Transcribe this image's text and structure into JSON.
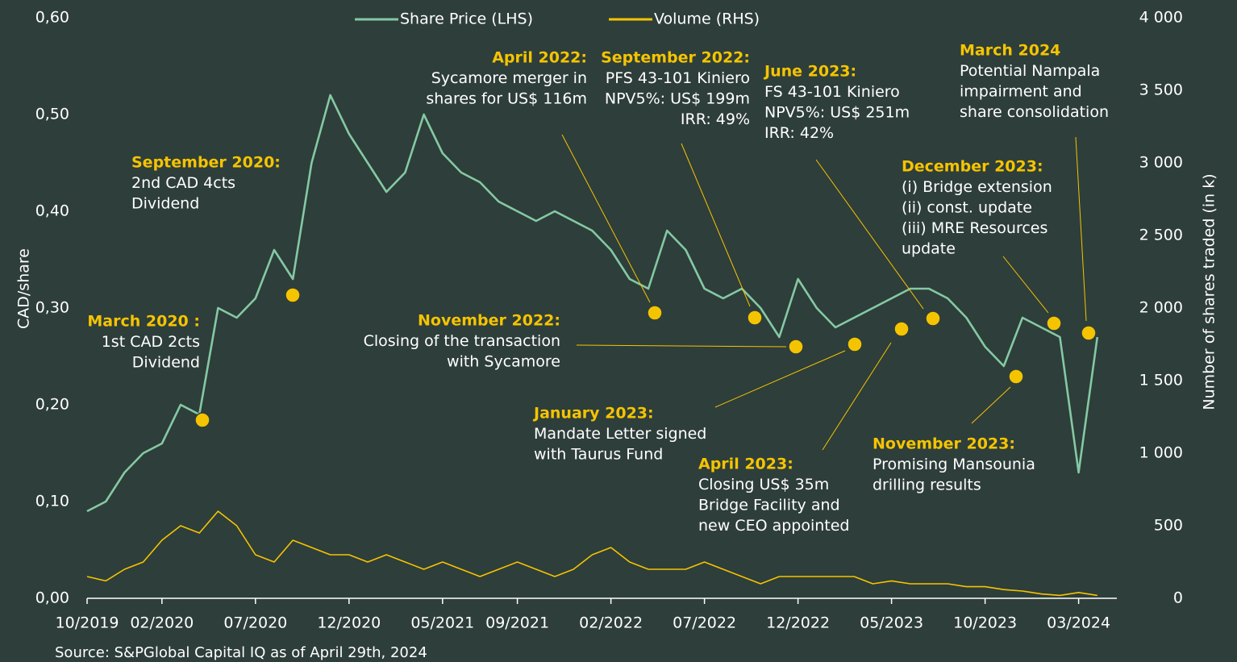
{
  "chart_data": {
    "type": "line",
    "series": [
      {
        "name": "Share Price (LHS)",
        "color": "#84c9a4",
        "axis": "y",
        "values": [
          0.09,
          0.1,
          0.13,
          0.15,
          0.16,
          0.2,
          0.19,
          0.3,
          0.29,
          0.31,
          0.36,
          0.33,
          0.45,
          0.52,
          0.48,
          0.45,
          0.42,
          0.44,
          0.5,
          0.46,
          0.44,
          0.43,
          0.41,
          0.4,
          0.39,
          0.4,
          0.39,
          0.38,
          0.36,
          0.33,
          0.32,
          0.38,
          0.36,
          0.32,
          0.31,
          0.32,
          0.3,
          0.27,
          0.33,
          0.3,
          0.28,
          0.29,
          0.3,
          0.31,
          0.32,
          0.32,
          0.31,
          0.29,
          0.26,
          0.24,
          0.29,
          0.28,
          0.27,
          0.13,
          0.27
        ]
      },
      {
        "name": "Volume (RHS)",
        "color": "#f5c400",
        "axis": "y2",
        "values": [
          150,
          120,
          200,
          250,
          400,
          500,
          450,
          600,
          500,
          300,
          250,
          400,
          350,
          300,
          300,
          250,
          300,
          250,
          200,
          250,
          200,
          150,
          200,
          250,
          200,
          150,
          200,
          300,
          350,
          250,
          200,
          200,
          200,
          250,
          200,
          150,
          100,
          150,
          150,
          150,
          150,
          150,
          100,
          120,
          100,
          100,
          100,
          80,
          80,
          60,
          50,
          30,
          20,
          40,
          20
        ]
      }
    ],
    "categories": [
      "10/2019",
      null,
      null,
      null,
      "02/2020",
      null,
      null,
      null,
      null,
      "07/2020",
      null,
      null,
      null,
      null,
      "12/2020",
      null,
      null,
      null,
      null,
      "05/2021",
      null,
      null,
      null,
      "09/2021",
      null,
      null,
      null,
      null,
      "02/2022",
      null,
      null,
      null,
      null,
      "07/2022",
      null,
      null,
      null,
      null,
      "12/2022",
      null,
      null,
      null,
      null,
      "05/2023",
      null,
      null,
      null,
      null,
      "10/2023",
      null,
      null,
      null,
      null,
      "03/2024",
      null
    ],
    "ylabel": "CAD/share",
    "y2label": "Number of shares traded (in k)",
    "ylim": [
      0,
      0.6
    ],
    "yticks": [
      {
        "value": 0,
        "label": "0,00"
      },
      {
        "value": 0.1,
        "label": "0,10"
      },
      {
        "value": 0.2,
        "label": "0,20"
      },
      {
        "value": 0.3,
        "label": "0,30"
      },
      {
        "value": 0.4,
        "label": "0,40"
      },
      {
        "value": 0.5,
        "label": "0,50"
      },
      {
        "value": 0.6,
        "label": "0,60"
      }
    ],
    "y2lim": [
      0,
      4000
    ],
    "y2ticks": [
      0,
      500,
      {
        "value": 1000,
        "label": "1 000"
      },
      {
        "value": 1500,
        "label": "1 500"
      },
      {
        "value": 2000,
        "label": "2 000"
      },
      {
        "value": 2500,
        "label": "2 500"
      },
      {
        "value": 3000,
        "label": "3 000"
      },
      {
        "value": 3500,
        "label": "3 500"
      },
      {
        "value": 4000,
        "label": "4 000"
      }
    ],
    "legend": "top",
    "source": "Source: S&PGlobal Capital IQ as of April 29th, 2024",
    "annotations": [
      {
        "title": "March 2020 :",
        "lines": [
          "1st CAD 2cts",
          "Dividend"
        ]
      },
      {
        "title": "September 2020:",
        "lines": [
          "2nd CAD 4cts",
          "Dividend"
        ]
      },
      {
        "title": "April 2022:",
        "lines": [
          "Sycamore merger in",
          "shares for US$ 116m"
        ]
      },
      {
        "title": "September 2022:",
        "lines": [
          "PFS 43-101 Kiniero",
          "NPV5%: US$ 199m",
          "IRR: 49%"
        ]
      },
      {
        "title": "June 2023:",
        "lines": [
          "FS 43-101 Kiniero",
          "NPV5%: US$ 251m",
          "IRR: 42%"
        ]
      },
      {
        "title": "March 2024",
        "lines": [
          "Potential Nampala",
          "impairment and",
          "share consolidation"
        ]
      },
      {
        "title": "December 2023:",
        "lines": [
          "(i) Bridge extension",
          "(ii) const. update",
          "(iii) MRE Resources",
          "update"
        ]
      },
      {
        "title": "November 2022:",
        "lines": [
          "Closing of the transaction",
          "with Sycamore"
        ]
      },
      {
        "title": "January 2023:",
        "lines": [
          "Mandate Letter signed",
          "with Taurus Fund"
        ]
      },
      {
        "title": "April 2023:",
        "lines": [
          "Closing US$ 35m",
          "Bridge Facility and",
          "new CEO appointed"
        ]
      },
      {
        "title": "November 2023:",
        "lines": [
          "Promising Mansounia",
          "drilling results"
        ]
      }
    ]
  }
}
